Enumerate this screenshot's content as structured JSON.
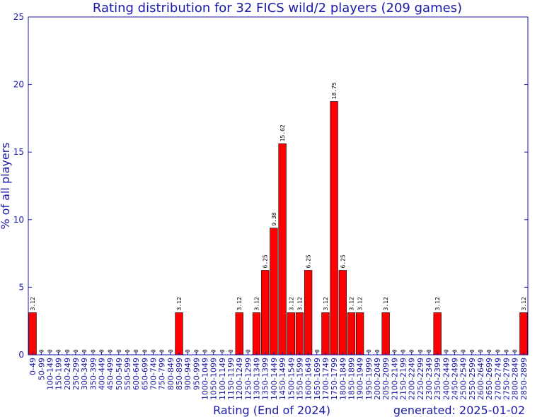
{
  "chart_data": {
    "type": "bar",
    "title": "Rating distribution for 32 FICS wild/2 players (209 games)",
    "xlabel": "Rating (End of 2024)",
    "ylabel": "% of all players",
    "footer": "generated: 2025-01-02",
    "ylim": [
      0,
      25
    ],
    "yticks": [
      "0",
      "5",
      "10",
      "15",
      "20",
      "25"
    ],
    "colors": {
      "bar": "#ff0000",
      "bar_edge": "#000000",
      "axis": "#1a1aa8",
      "text": "#1a1aa8"
    },
    "grid": false,
    "categories": [
      "0-49",
      "50-99",
      "100-149",
      "150-199",
      "200-249",
      "250-299",
      "300-349",
      "350-399",
      "400-449",
      "450-499",
      "500-549",
      "550-599",
      "600-649",
      "650-699",
      "700-749",
      "750-799",
      "800-849",
      "850-899",
      "900-949",
      "950-999",
      "1000-1049",
      "1050-1099",
      "1100-1149",
      "1150-1199",
      "1200-1249",
      "1250-1299",
      "1300-1349",
      "1350-1399",
      "1400-1449",
      "1450-1499",
      "1500-1549",
      "1550-1599",
      "1600-1649",
      "1650-1699",
      "1700-1749",
      "1750-1799",
      "1800-1849",
      "1850-1899",
      "1900-1949",
      "1950-1999",
      "2000-2049",
      "2050-2099",
      "2100-2149",
      "2150-2199",
      "2200-2249",
      "2250-2299",
      "2300-2349",
      "2350-2399",
      "2400-2449",
      "2450-2499",
      "2500-2549",
      "2550-2599",
      "2600-2649",
      "2650-2699",
      "2700-2749",
      "2750-2799",
      "2800-2849",
      "2850-2899"
    ],
    "values": [
      3.12,
      0,
      0,
      0,
      0,
      0,
      0,
      0,
      0,
      0,
      0,
      0,
      0,
      0,
      0,
      0,
      0,
      3.12,
      0,
      0,
      0,
      0,
      0,
      0,
      3.12,
      0,
      3.12,
      6.25,
      9.38,
      15.62,
      3.12,
      3.12,
      6.25,
      0,
      3.12,
      18.75,
      6.25,
      3.12,
      3.12,
      0,
      0,
      3.12,
      0,
      0,
      0,
      0,
      0,
      3.12,
      0,
      0,
      0,
      0,
      0,
      0,
      0,
      0,
      0,
      3.12
    ],
    "value_labels": [
      "3.12",
      "0",
      "0",
      "0",
      "0",
      "0",
      "0",
      "0",
      "0",
      "0",
      "0",
      "0",
      "0",
      "0",
      "0",
      "0",
      "0",
      "3.12",
      "0",
      "0",
      "0",
      "0",
      "0",
      "0",
      "3.12",
      "0",
      "3.12",
      "6.25",
      "9.38",
      "15.62",
      "3.12",
      "3.12",
      "6.25",
      "0",
      "3.12",
      "18.75",
      "6.25",
      "3.12",
      "3.12",
      "0",
      "0",
      "3.12",
      "0",
      "0",
      "0",
      "0",
      "0",
      "3.12",
      "0",
      "0",
      "0",
      "0",
      "0",
      "0",
      "0",
      "0",
      "0",
      "3.12"
    ]
  }
}
